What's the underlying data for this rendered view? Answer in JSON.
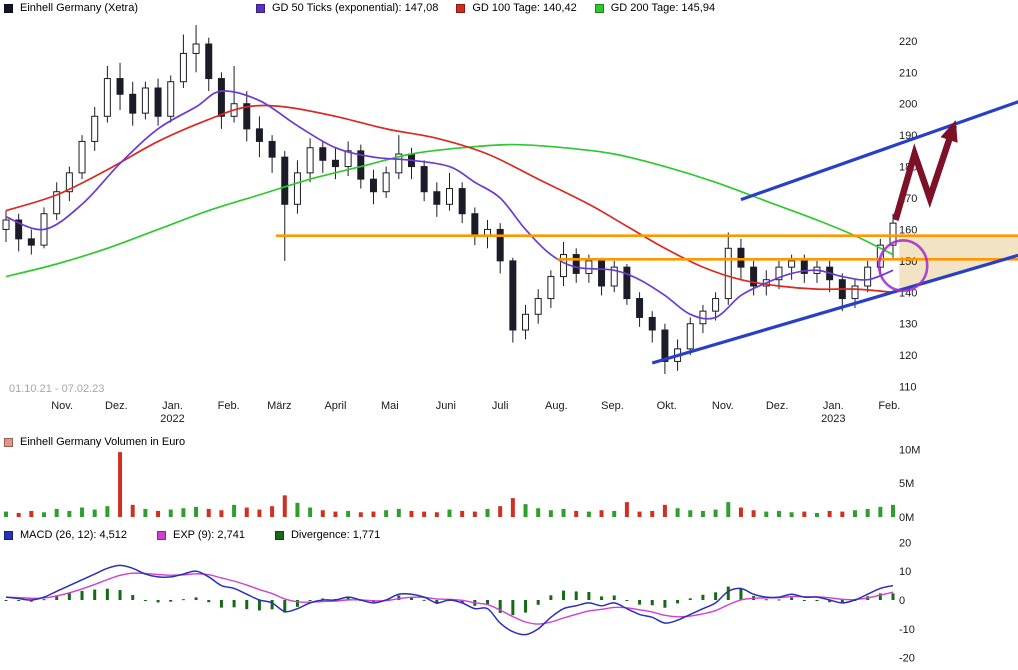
{
  "main_legend": {
    "items": [
      {
        "label": "Einhell Germany (Xetra)",
        "color": "#141424"
      },
      {
        "label": "GD 50 Ticks (exponential): 147,08",
        "color": "#5b2fc0"
      },
      {
        "label": "GD 100 Tage: 140,42",
        "color": "#d42a1e"
      },
      {
        "label": "GD 200 Tage: 145,94",
        "color": "#2ec82e"
      }
    ]
  },
  "volume_legend": {
    "items": [
      {
        "label": "Einhell Germany Volumen in Euro",
        "color": "#e89484"
      }
    ]
  },
  "macd_legend": {
    "items": [
      {
        "label": "MACD (26, 12): 4,512",
        "color": "#2830b8"
      },
      {
        "label": "EXP (9): 2,741",
        "color": "#d040d0"
      },
      {
        "label": "Divergence: 1,771",
        "color": "#156a15"
      }
    ]
  },
  "date_range_label": "01.10.21 - 07.02.23",
  "chart_data": [
    {
      "type": "candlestick",
      "title": "Einhell Germany (Xetra)",
      "x_unit": "weeks from 01.10.2021",
      "ylim": [
        107,
        226
      ],
      "yticks": [
        110,
        120,
        130,
        140,
        150,
        160,
        170,
        180,
        190,
        200,
        210,
        220
      ],
      "x_months": [
        {
          "label": "Nov.",
          "week": 4.43
        },
        {
          "label": "Dez.",
          "week": 8.71
        },
        {
          "label": "Jan.",
          "week": 13.14
        },
        {
          "label": "Feb.",
          "week": 17.57
        },
        {
          "label": "März",
          "week": 21.57
        },
        {
          "label": "April",
          "week": 26.0
        },
        {
          "label": "Mai",
          "week": 30.29
        },
        {
          "label": "Juni",
          "week": 34.71
        },
        {
          "label": "Juli",
          "week": 39.0
        },
        {
          "label": "Aug.",
          "week": 43.43
        },
        {
          "label": "Sep.",
          "week": 47.86
        },
        {
          "label": "Okt.",
          "week": 52.14
        },
        {
          "label": "Nov.",
          "week": 56.57
        },
        {
          "label": "Dez.",
          "week": 60.86
        },
        {
          "label": "Jan.",
          "week": 65.29
        },
        {
          "label": "Feb.",
          "week": 69.71
        }
      ],
      "x_years": [
        {
          "label": "2022",
          "week": 13.14
        },
        {
          "label": "2023",
          "week": 65.29
        }
      ],
      "up_fill": "#ffffff",
      "down_fill": "#1c1c28",
      "stroke": "#1c1c28",
      "candles_ohlc": [
        [
          160,
          166,
          156,
          163
        ],
        [
          163,
          165,
          153,
          157
        ],
        [
          157,
          160,
          152,
          155
        ],
        [
          155,
          167,
          154,
          165
        ],
        [
          165,
          175,
          163,
          172
        ],
        [
          172,
          180,
          169,
          178
        ],
        [
          178,
          190,
          176,
          188
        ],
        [
          188,
          199,
          185,
          196
        ],
        [
          196,
          212,
          194,
          208
        ],
        [
          208,
          213,
          198,
          203
        ],
        [
          203,
          207,
          193,
          197
        ],
        [
          197,
          207,
          195,
          205
        ],
        [
          205,
          208,
          193,
          196
        ],
        [
          196,
          209,
          194,
          207
        ],
        [
          207,
          222,
          205,
          216
        ],
        [
          216,
          225,
          210,
          219
        ],
        [
          219,
          221,
          204,
          208
        ],
        [
          208,
          210,
          192,
          196
        ],
        [
          196,
          212,
          194,
          200
        ],
        [
          200,
          204,
          188,
          192
        ],
        [
          192,
          196,
          183,
          188
        ],
        [
          188,
          190,
          178,
          183
        ],
        [
          183,
          185,
          150,
          168
        ],
        [
          168,
          182,
          165,
          178
        ],
        [
          178,
          189,
          175,
          186
        ],
        [
          186,
          188,
          178,
          182
        ],
        [
          182,
          186,
          176,
          180
        ],
        [
          180,
          188,
          177,
          185
        ],
        [
          185,
          187,
          173,
          176
        ],
        [
          176,
          179,
          168,
          172
        ],
        [
          172,
          180,
          170,
          178
        ],
        [
          178,
          190,
          176,
          184
        ],
        [
          184,
          186,
          176,
          180
        ],
        [
          180,
          182,
          169,
          172
        ],
        [
          172,
          175,
          164,
          168
        ],
        [
          168,
          178,
          166,
          173
        ],
        [
          173,
          175,
          162,
          165
        ],
        [
          165,
          167,
          155,
          158
        ],
        [
          158,
          163,
          154,
          160
        ],
        [
          160,
          162,
          146,
          150
        ],
        [
          150,
          151,
          124,
          128
        ],
        [
          128,
          136,
          125,
          133
        ],
        [
          133,
          141,
          130,
          138
        ],
        [
          138,
          147,
          135,
          145
        ],
        [
          145,
          156,
          142,
          152
        ],
        [
          152,
          154,
          143,
          146
        ],
        [
          146,
          152,
          143,
          150
        ],
        [
          150,
          151,
          139,
          142
        ],
        [
          142,
          150,
          140,
          148
        ],
        [
          148,
          149,
          136,
          138
        ],
        [
          138,
          140,
          129,
          132
        ],
        [
          132,
          134,
          124,
          128
        ],
        [
          128,
          130,
          114,
          118
        ],
        [
          118,
          125,
          115,
          122
        ],
        [
          122,
          132,
          120,
          130
        ],
        [
          130,
          136,
          127,
          134
        ],
        [
          134,
          140,
          131,
          138
        ],
        [
          138,
          159,
          136,
          154
        ],
        [
          154,
          157,
          144,
          148
        ],
        [
          148,
          150,
          139,
          142
        ],
        [
          142,
          147,
          139,
          144
        ],
        [
          144,
          150,
          141,
          148
        ],
        [
          148,
          152,
          144,
          150
        ],
        [
          150,
          152,
          143,
          146
        ],
        [
          146,
          150,
          143,
          148
        ],
        [
          148,
          150,
          140,
          144
        ],
        [
          144,
          146,
          134,
          138
        ],
        [
          138,
          144,
          135,
          142
        ],
        [
          142,
          150,
          140,
          148
        ],
        [
          148,
          157,
          146,
          155
        ],
        [
          155,
          165,
          151,
          162
        ]
      ],
      "ma_series": [
        {
          "name": "GD 50 Ticks (exponential)",
          "value_label": "147,08",
          "color": "#6a3bd0",
          "points": [
            [
              0,
              164
            ],
            [
              3,
              160
            ],
            [
              6,
              168
            ],
            [
              9,
              181
            ],
            [
              12,
              192
            ],
            [
              15,
              199
            ],
            [
              17,
              204
            ],
            [
              20,
              201
            ],
            [
              23,
              193
            ],
            [
              26,
              186
            ],
            [
              29,
              183
            ],
            [
              32,
              182
            ],
            [
              35,
              180
            ],
            [
              37,
              175
            ],
            [
              39,
              170
            ],
            [
              41,
              160
            ],
            [
              43,
              152
            ],
            [
              45,
              148
            ],
            [
              48,
              147
            ],
            [
              50,
              144
            ],
            [
              52,
              139
            ],
            [
              54,
              133
            ],
            [
              56,
              132
            ],
            [
              58,
              139
            ],
            [
              60,
              143
            ],
            [
              62,
              146
            ],
            [
              64,
              147
            ],
            [
              66,
              145
            ],
            [
              68,
              144
            ],
            [
              70,
              147
            ]
          ]
        },
        {
          "name": "GD 100 Tage",
          "value_label": "140,42",
          "color": "#d82a20",
          "points": [
            [
              0,
              166
            ],
            [
              4,
              171
            ],
            [
              8,
              179
            ],
            [
              12,
              188
            ],
            [
              16,
              195
            ],
            [
              19,
              199
            ],
            [
              22,
              199
            ],
            [
              26,
              196
            ],
            [
              30,
              192
            ],
            [
              34,
              189
            ],
            [
              38,
              184
            ],
            [
              42,
              176
            ],
            [
              46,
              168
            ],
            [
              49,
              161
            ],
            [
              52,
              154
            ],
            [
              55,
              148
            ],
            [
              58,
              144
            ],
            [
              61,
              142
            ],
            [
              64,
              141
            ],
            [
              67,
              141
            ],
            [
              70,
              140
            ]
          ]
        },
        {
          "name": "GD 200 Tage",
          "value_label": "145,94",
          "color": "#30c830",
          "points": [
            [
              0,
              145
            ],
            [
              4,
              149
            ],
            [
              8,
              154
            ],
            [
              12,
              160
            ],
            [
              16,
              166
            ],
            [
              20,
              171
            ],
            [
              24,
              176
            ],
            [
              28,
              180
            ],
            [
              32,
              184
            ],
            [
              36,
              186
            ],
            [
              40,
              187
            ],
            [
              44,
              186
            ],
            [
              48,
              184
            ],
            [
              52,
              180
            ],
            [
              56,
              175
            ],
            [
              60,
              169
            ],
            [
              64,
              163
            ],
            [
              67,
              158
            ],
            [
              70,
              152
            ]
          ]
        }
      ],
      "annotations": {
        "hlines": [
          {
            "value": 158,
            "from_week": 21.3,
            "to_week": 80.5,
            "color": "#ff9800"
          },
          {
            "value": 150.5,
            "from_week": 43.5,
            "to_week": 80.5,
            "color": "#ff9800"
          }
        ],
        "channel": [
          {
            "name": "trend-channel-lower",
            "from": [
              51,
              117.5
            ],
            "to": [
              80.5,
              152.5
            ],
            "color": "#2840c8"
          },
          {
            "name": "trend-channel-upper",
            "from": [
              58,
              169.5
            ],
            "to": [
              80.5,
              201.5
            ],
            "color": "#2840c8"
          }
        ],
        "shaded_region": {
          "points": [
            [
              70.5,
              158
            ],
            [
              80.5,
              158
            ],
            [
              80.5,
              152.5
            ],
            [
              70.5,
              140.8
            ]
          ],
          "fill": "#f0e2c0"
        },
        "arrow": {
          "points": [
            [
              70.2,
              163
            ],
            [
              71.7,
              184
            ],
            [
              72.9,
              170
            ],
            [
              74.8,
              193
            ]
          ],
          "color": "#7d1128"
        },
        "ellipse": {
          "cx": 70.8,
          "cy": 148.5,
          "rx_weeks": 1.9,
          "ry_value": 8,
          "color": "#a02cc8"
        }
      }
    },
    {
      "type": "bar",
      "title": "Einhell Germany Volumen in Euro",
      "ylim": [
        0,
        10.8
      ],
      "yticks": [
        {
          "v": 0,
          "label": "0M"
        },
        {
          "v": 5,
          "label": "5M"
        },
        {
          "v": 10,
          "label": "10M"
        }
      ],
      "up_color": "#2f9e2f",
      "down_color": "#d03020",
      "values_millions": [
        0.8,
        0.6,
        0.9,
        0.7,
        1.2,
        0.9,
        1.4,
        1.1,
        1.6,
        9.6,
        1.8,
        1.2,
        0.9,
        1.1,
        1.3,
        1.5,
        1.2,
        1.0,
        1.8,
        1.4,
        1.1,
        1.6,
        3.2,
        2.1,
        1.4,
        1.0,
        0.8,
        0.9,
        0.7,
        0.8,
        1.0,
        1.2,
        0.9,
        0.8,
        0.7,
        1.1,
        0.9,
        0.8,
        1.2,
        1.6,
        2.8,
        1.9,
        1.3,
        1.0,
        1.2,
        0.9,
        0.8,
        1.0,
        0.9,
        2.2,
        0.8,
        0.9,
        1.8,
        1.3,
        1.0,
        0.9,
        1.1,
        2.2,
        1.4,
        1.0,
        0.8,
        0.9,
        0.7,
        0.8,
        0.6,
        0.9,
        0.8,
        1.0,
        1.2,
        1.5,
        1.8
      ]
    },
    {
      "type": "line+bar",
      "title": "MACD",
      "ylim": [
        -21.5,
        21.5
      ],
      "yticks": [
        20,
        10,
        0,
        -10,
        -20
      ],
      "series": [
        {
          "name": "MACD (26, 12)",
          "value_label": "4,512",
          "color": "#2830b8",
          "values": [
            1,
            0.5,
            0,
            1,
            3,
            5,
            7,
            9,
            11,
            12,
            11,
            9,
            8,
            8,
            9,
            10,
            8,
            5,
            4,
            2,
            0,
            -1,
            -4,
            -3,
            -1,
            0,
            0,
            1,
            0,
            -1,
            0,
            2,
            2,
            1,
            -1,
            0,
            -1,
            -3,
            -3,
            -8,
            -11,
            -12,
            -10,
            -6,
            -3,
            -2,
            -1,
            -2,
            -1,
            -3,
            -5,
            -6,
            -8,
            -7,
            -5,
            -3,
            -1,
            3,
            4,
            2,
            1,
            1,
            2,
            1,
            1,
            0,
            -1,
            0,
            2,
            4,
            5
          ]
        },
        {
          "name": "EXP (9)",
          "value_label": "2,741",
          "color": "#d040d0",
          "derived": "ema_of_macd_alpha_0.3"
        },
        {
          "name": "Divergence",
          "value_label": "1,771",
          "color": "#156a15",
          "derived": "macd_minus_signal"
        }
      ]
    }
  ]
}
